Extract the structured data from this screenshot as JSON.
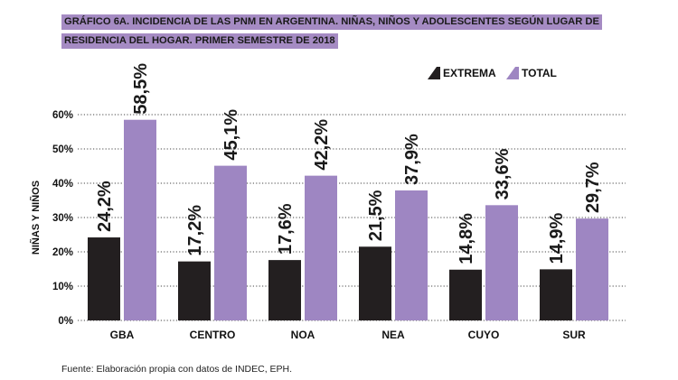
{
  "title_lines": [
    "GRÁFICO 6A. INCIDENCIA DE LAS PNM EN ARGENTINA. NIÑAS, NIÑOS Y ADOLESCENTES SEGÚN LUGAR DE",
    "RESIDENCIA DEL HOGAR. PRIMER SEMESTRE DE 2018"
  ],
  "source": "Fuente: Elaboración propia con datos de INDEC, EPH.",
  "colors": {
    "extrema": "#231f20",
    "total": "#9e86c2",
    "title_bg": "#a58bc3",
    "grid": "#444444"
  },
  "chart_data": {
    "type": "bar",
    "title": "GRÁFICO 6A. INCIDENCIA DE LAS PNM EN ARGENTINA. NIÑAS, NIÑOS Y ADOLESCENTES SEGÚN LUGAR DE RESIDENCIA DEL HOGAR. PRIMER SEMESTRE DE 2018",
    "ylabel": "NIÑAS Y NIÑOS",
    "xlabel": "",
    "categories": [
      "GBA",
      "CENTRO",
      "NOA",
      "NEA",
      "CUYO",
      "SUR"
    ],
    "series": [
      {
        "name": "EXTREMA",
        "values": [
          24.2,
          17.2,
          17.6,
          21.5,
          14.8,
          14.9
        ],
        "labels": [
          "24,2%",
          "17,2%",
          "17,6%",
          "21,5%",
          "14,8%",
          "14,9%"
        ]
      },
      {
        "name": "TOTAL",
        "values": [
          58.5,
          45.1,
          42.2,
          37.9,
          33.6,
          29.7
        ],
        "labels": [
          "58,5%",
          "45,1%",
          "42,2%",
          "37,9%",
          "33,6%",
          "29,7%"
        ]
      }
    ],
    "ylim": [
      0,
      60
    ],
    "yticks": [
      0,
      10,
      20,
      30,
      40,
      50,
      60
    ],
    "ytick_labels": [
      "0%",
      "10%",
      "20%",
      "30%",
      "40%",
      "50%",
      "60%"
    ],
    "grid": "dotted horizontal",
    "legend": "top-right"
  }
}
